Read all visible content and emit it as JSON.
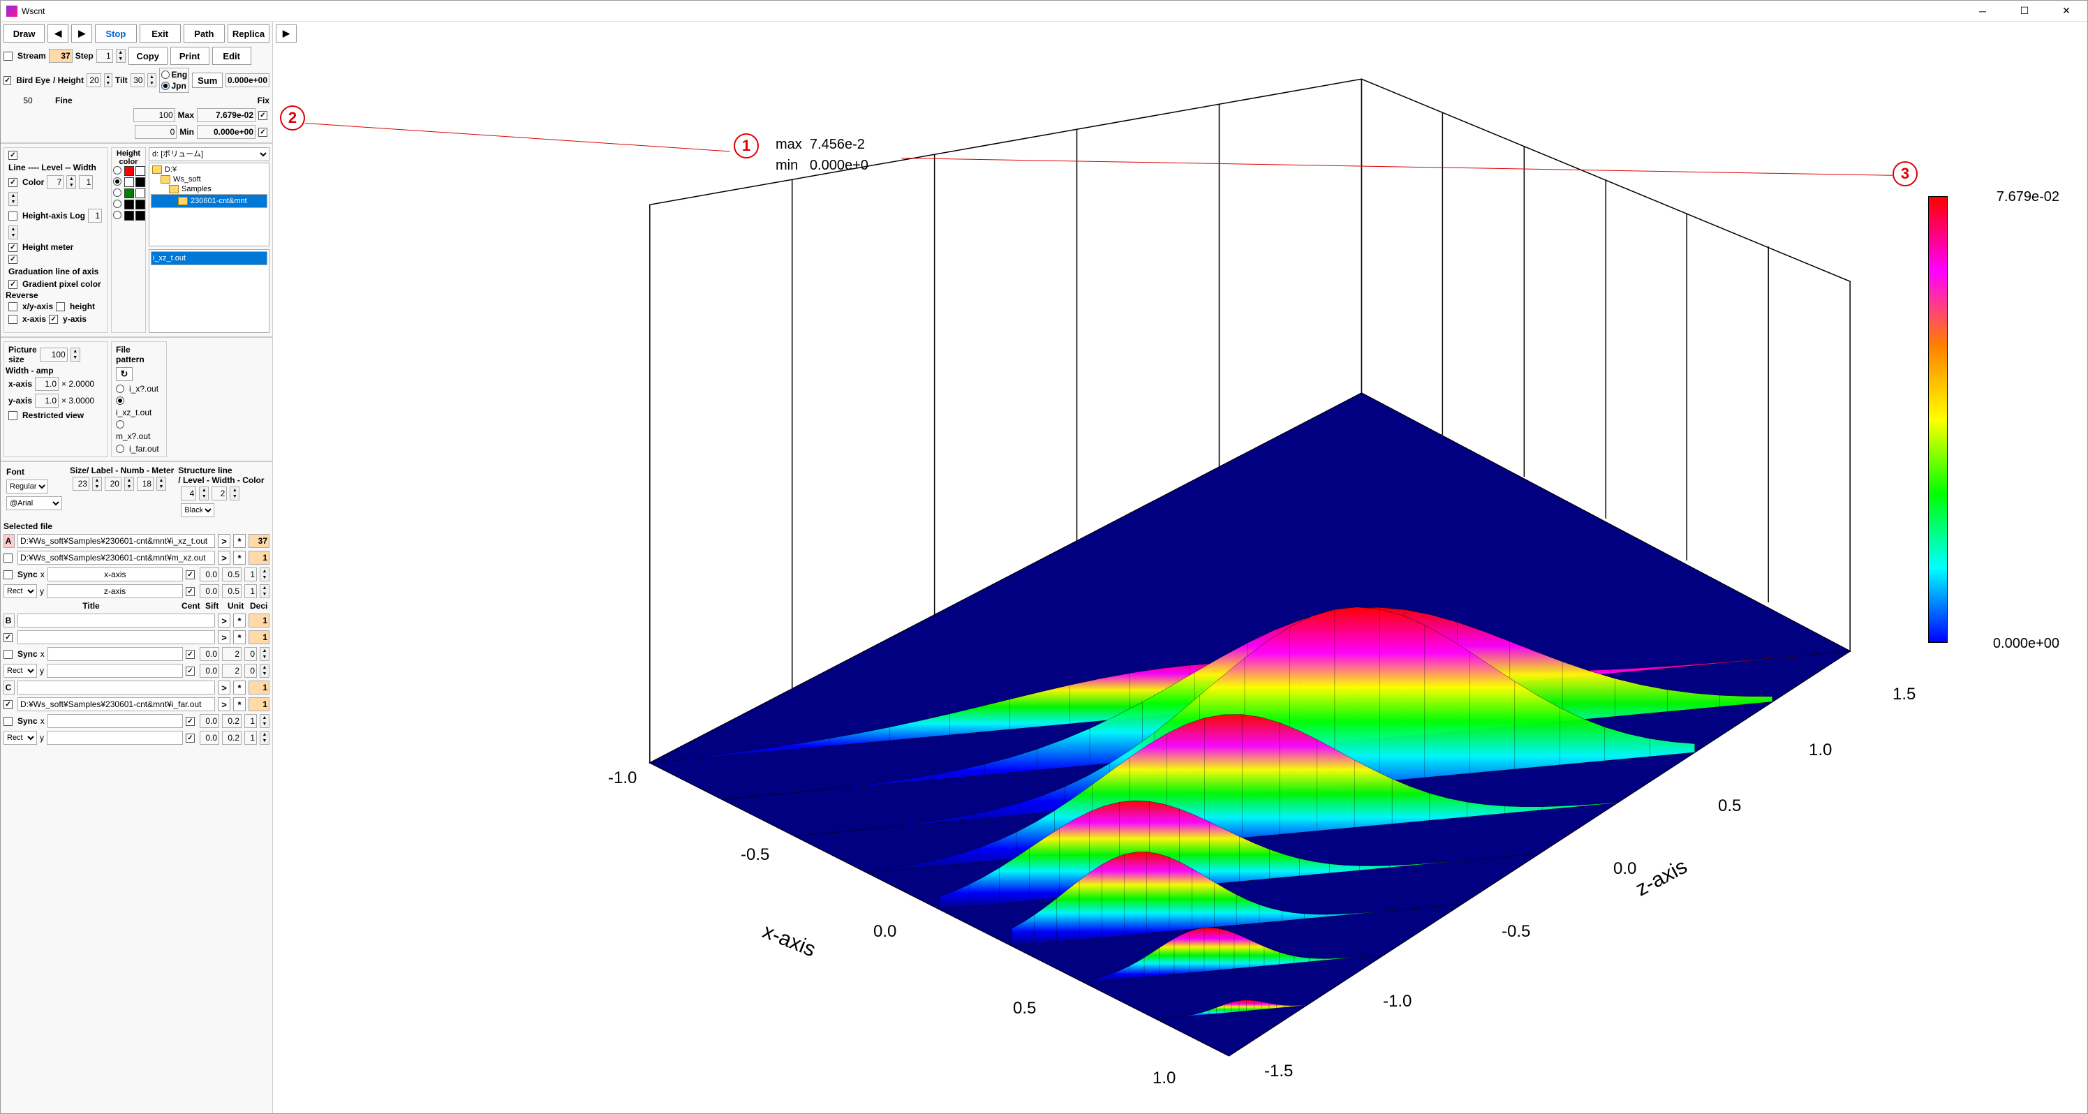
{
  "window": {
    "title": "Wscnt"
  },
  "toolbar": {
    "draw": "Draw",
    "back": "◀",
    "fwd": "▶",
    "stop": "Stop",
    "exit": "Exit",
    "path": "Path",
    "replica": "Replica",
    "play": "▶",
    "stream_lbl": "Stream",
    "stream_val": "37",
    "step_lbl": "Step",
    "step_val": "1",
    "copy": "Copy",
    "print": "Print",
    "edit": "Edit",
    "birdeye_lbl": "Bird Eye",
    "height_lbl": "/ Height",
    "height_val": "20",
    "tilt_lbl": "Tilt",
    "tilt_val": "30",
    "eng": "Eng",
    "jpn": "Jpn",
    "sum_lbl": "Sum",
    "sum_val": "0.000e+00",
    "fine_lbl": "Fine",
    "fine_val": "50",
    "max_in": "100",
    "max_lbl": "Max",
    "max_val": "7.679e-02",
    "min_in": "0",
    "min_lbl": "Min",
    "min_val": "0.000e+00",
    "fix_lbl": "Fix"
  },
  "lineopts": {
    "line_lbl": "Line ---- Level -- Width",
    "color_lbl": "Color",
    "color_lvl": "7",
    "color_w": "1",
    "hlog_lbl": "Height-axis Log",
    "hlog_val": "1",
    "hmeter": "Height meter",
    "grad_axis": "Graduation line of axis",
    "grad_pixel": "Gradient pixel color",
    "reverse_lbl": "Reverse",
    "xy_axis": "x/y-axis",
    "height": "height",
    "x_axis": "x-axis",
    "y_axis": "y-axis",
    "hcolor_lbl": "Height\ncolor"
  },
  "colors": {
    "grid": [
      "#ffffff",
      "#ff0000",
      "#ffffff",
      "#ff0000",
      "#ffffff",
      "#000000",
      "#ffffff",
      "#008000",
      "#ffffff",
      "#0000ff",
      "#000000",
      "#000000",
      "#000000",
      "#000000",
      "#000000"
    ]
  },
  "tree": {
    "drive": "d: [ボリューム]",
    "items": [
      "D:¥",
      "Ws_soft",
      "Samples",
      "230601-cnt&mnt"
    ],
    "filelist": [
      "i_xz_t.out"
    ]
  },
  "pic": {
    "size_lbl": "Picture\nsize",
    "size_val": "100",
    "wamp_lbl": "Width - amp",
    "x_lbl": "x-axis",
    "x_v": "1.0",
    "x_a": "× 2.0000",
    "y_lbl": "y-axis",
    "y_v": "1.0",
    "y_a": "× 3.0000",
    "restrict": "Restricted view",
    "fp_lbl": "File\npattern",
    "refresh": "↻",
    "patterns": [
      "i_x?.out",
      "i_xz_t.out",
      "m_x?.out",
      "i_far.out"
    ],
    "pattern_sel": 1
  },
  "font": {
    "font_lbl": "Font",
    "weight": "Regular",
    "family": "@Arial",
    "size_lbl": "Size/ Label - Numb - Meter",
    "s1": "23",
    "s2": "20",
    "s3": "18",
    "struct_lbl": "Structure line\n/ Level - Width - Color",
    "sl_lvl": "4",
    "sl_w": "2",
    "sl_color": "Black"
  },
  "selfile": {
    "header": "Selected file",
    "a_path": "D:¥Ws_soft¥Samples¥230601-cnt&mnt¥i_xz_t.out",
    "a_n": "37",
    "b_path": "D:¥Ws_soft¥Samples¥230601-cnt&mnt¥m_xz.out",
    "b_n": "1",
    "sync": "Sync",
    "x": "x",
    "y": "y",
    "xaxis_t": "x-axis",
    "zaxis_t": "z-axis",
    "rect": "Rect",
    "title_lbl": "Title",
    "cent": "Cent",
    "sift": "Sift",
    "unit": "Unit",
    "deci": "Deci",
    "v00": "0.0",
    "v05": "0.5",
    "v1": "1",
    "v2": "2",
    "v02": "0.2",
    "v0": "0",
    "c_path": "D:¥Ws_soft¥Samples¥230601-cnt&mnt¥i_far.out"
  },
  "plot": {
    "max_lbl": "max",
    "max_v": "7.456e-2",
    "min_lbl": "min",
    "min_v": "0.000e+0",
    "cbar_max": "7.679e-02",
    "cbar_min": "0.000e+00",
    "x_label": "x-axis",
    "z_label": "z-axis",
    "x_ticks": [
      "-1.0",
      "-0.5",
      "0.0",
      "0.5",
      "1.0"
    ],
    "z_ticks": [
      "-1.5",
      "-1.0",
      "-0.5",
      "0.0",
      "0.5",
      "1.0",
      "1.5"
    ],
    "ann1": "1",
    "ann2": "2",
    "ann3": "3",
    "box_color": "#000000",
    "surface_gradient": [
      "#000080",
      "#0000ff",
      "#00ffff",
      "#00ff00",
      "#ffff00",
      "#ff8000",
      "#ff00ff",
      "#ff0000"
    ]
  }
}
